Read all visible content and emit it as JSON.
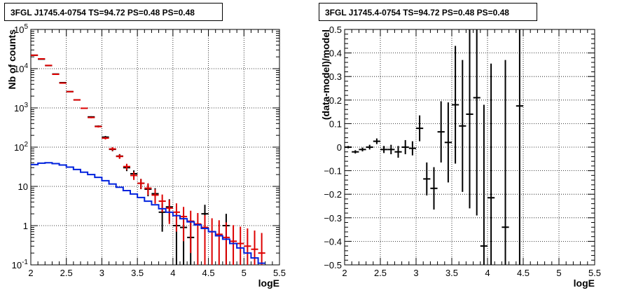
{
  "chart_data": [
    {
      "type": "line",
      "title": "3FGL J1745.4-0754 TS=94.72 PS=0.48 PS=0.48",
      "xlabel": "logE",
      "ylabel": "Nb of counts",
      "xlim": [
        2,
        5.5
      ],
      "ylim": [
        0.1,
        100000
      ],
      "yscale": "log",
      "grid": true,
      "x_ticks": [
        "2",
        "2.5",
        "3",
        "3.5",
        "4",
        "4.5",
        "5",
        "5.5"
      ],
      "y_ticks": [
        "10^-1",
        "1",
        "10",
        "10^2",
        "10^3",
        "10^4",
        "10^5"
      ],
      "bin_width": 0.1,
      "series": [
        {
          "color": "#000000",
          "style": "errorbar",
          "x": [
            2.05,
            2.15,
            2.25,
            2.35,
            2.45,
            2.55,
            2.65,
            2.75,
            2.85,
            2.95,
            3.05,
            3.15,
            3.25,
            3.35,
            3.45,
            3.55,
            3.65,
            3.75,
            3.85,
            3.95,
            4.05,
            4.15,
            4.25,
            4.35,
            4.45,
            4.55,
            4.65,
            4.75,
            4.85,
            4.95,
            5.05,
            5.15,
            5.25
          ],
          "y": [
            22000,
            17500,
            12000,
            7300,
            4400,
            2600,
            1600,
            980,
            590,
            340,
            180,
            88,
            59,
            30,
            21,
            12,
            8.5,
            6.5,
            2.2,
            3.0,
            1.0,
            0.9,
            0.5,
            0,
            2.0,
            0,
            0,
            1.0,
            0,
            0,
            0,
            0,
            0
          ],
          "err": [
            150,
            130,
            110,
            85,
            66,
            51,
            40,
            31,
            24,
            18,
            13,
            9.4,
            7.7,
            5.5,
            4.6,
            3.5,
            2.9,
            2.5,
            1.5,
            1.7,
            1.0,
            0.95,
            0.7,
            0,
            1.4,
            0,
            0,
            1.0,
            0,
            0,
            0,
            0,
            0
          ]
        },
        {
          "color": "#dd0000",
          "style": "errorbar",
          "x": [
            2.05,
            2.15,
            2.25,
            2.35,
            2.45,
            2.55,
            2.65,
            2.75,
            2.85,
            2.95,
            3.05,
            3.15,
            3.25,
            3.35,
            3.45,
            3.55,
            3.65,
            3.75,
            3.85,
            3.95,
            4.05,
            4.15,
            4.25,
            4.35,
            4.45,
            4.55,
            4.65,
            4.75,
            4.85,
            4.95,
            5.05,
            5.15,
            5.25
          ],
          "y": [
            22000,
            17800,
            12100,
            7200,
            4300,
            2600,
            1600,
            980,
            570,
            335,
            170,
            90,
            58,
            32,
            19,
            12,
            9,
            6,
            4.2,
            2.8,
            2.2,
            1.7,
            1.3,
            1.1,
            0.9,
            0.7,
            0.6,
            0.5,
            0.4,
            0.35,
            0.3,
            0.25,
            0.2
          ],
          "err": [
            150,
            130,
            110,
            85,
            66,
            51,
            40,
            31,
            24,
            18,
            13,
            9.5,
            7.6,
            5.7,
            4.4,
            3.5,
            3.0,
            2.4,
            2.0,
            1.7,
            1.5,
            1.3,
            1.1,
            1.0,
            0.95,
            0.84,
            0.77,
            0.71,
            0.63,
            0.59,
            0.55,
            0.5,
            0.45
          ]
        },
        {
          "color": "#0022dd",
          "style": "step",
          "x": [
            2.05,
            2.15,
            2.25,
            2.35,
            2.45,
            2.55,
            2.65,
            2.75,
            2.85,
            2.95,
            3.05,
            3.15,
            3.25,
            3.35,
            3.45,
            3.55,
            3.65,
            3.75,
            3.85,
            3.95,
            4.05,
            4.15,
            4.25,
            4.35,
            4.45,
            4.55,
            4.65,
            4.75,
            4.85,
            4.95,
            5.05,
            5.15,
            5.25
          ],
          "y": [
            36,
            39,
            40,
            38,
            35,
            31,
            27,
            23,
            20,
            17,
            14,
            11.5,
            9.5,
            7.8,
            6.4,
            5.2,
            4.2,
            3.4,
            2.7,
            2.2,
            1.8,
            1.5,
            1.25,
            1.05,
            0.85,
            0.7,
            0.55,
            0.45,
            0.35,
            0.27,
            0.2,
            0.15,
            0.11
          ]
        }
      ]
    },
    {
      "type": "scatter",
      "title": "3FGL J1745.4-0754 TS=94.72 PS=0.48 PS=0.48",
      "xlabel": "logE",
      "ylabel": "(data-model)/model",
      "xlim": [
        2,
        5.5
      ],
      "ylim": [
        -0.5,
        0.5
      ],
      "grid": true,
      "x_ticks": [
        "2",
        "2.5",
        "3",
        "3.5",
        "4",
        "4.5",
        "5",
        "5.5"
      ],
      "y_ticks": [
        "−0.5",
        "−0.4",
        "−0.3",
        "−0.2",
        "−0.1",
        "0",
        "0.1",
        "0.2",
        "0.3",
        "0.4",
        "0.5"
      ],
      "bin_width": 0.1,
      "series": [
        {
          "color": "#000000",
          "style": "errorbar",
          "x": [
            2.05,
            2.15,
            2.25,
            2.35,
            2.45,
            2.55,
            2.65,
            2.75,
            2.85,
            2.95,
            3.05,
            3.15,
            3.25,
            3.35,
            3.45,
            3.55,
            3.65,
            3.75,
            3.85,
            3.95,
            4.05,
            4.25,
            4.45
          ],
          "y": [
            0.0,
            -0.02,
            -0.01,
            0.0,
            0.025,
            -0.01,
            -0.01,
            -0.02,
            0.0,
            -0.005,
            0.08,
            -0.135,
            -0.175,
            0.065,
            0.02,
            0.18,
            0.09,
            0.14,
            0.21,
            -0.42,
            -0.215,
            -0.34,
            0.175
          ],
          "err": [
            0.005,
            0.007,
            0.008,
            0.01,
            0.012,
            0.015,
            0.02,
            0.025,
            0.03,
            0.03,
            0.055,
            0.07,
            0.09,
            0.13,
            0.17,
            0.25,
            0.28,
            0.4,
            0.5,
            0.6,
            0.57,
            0.71,
            0.7
          ]
        }
      ]
    }
  ]
}
